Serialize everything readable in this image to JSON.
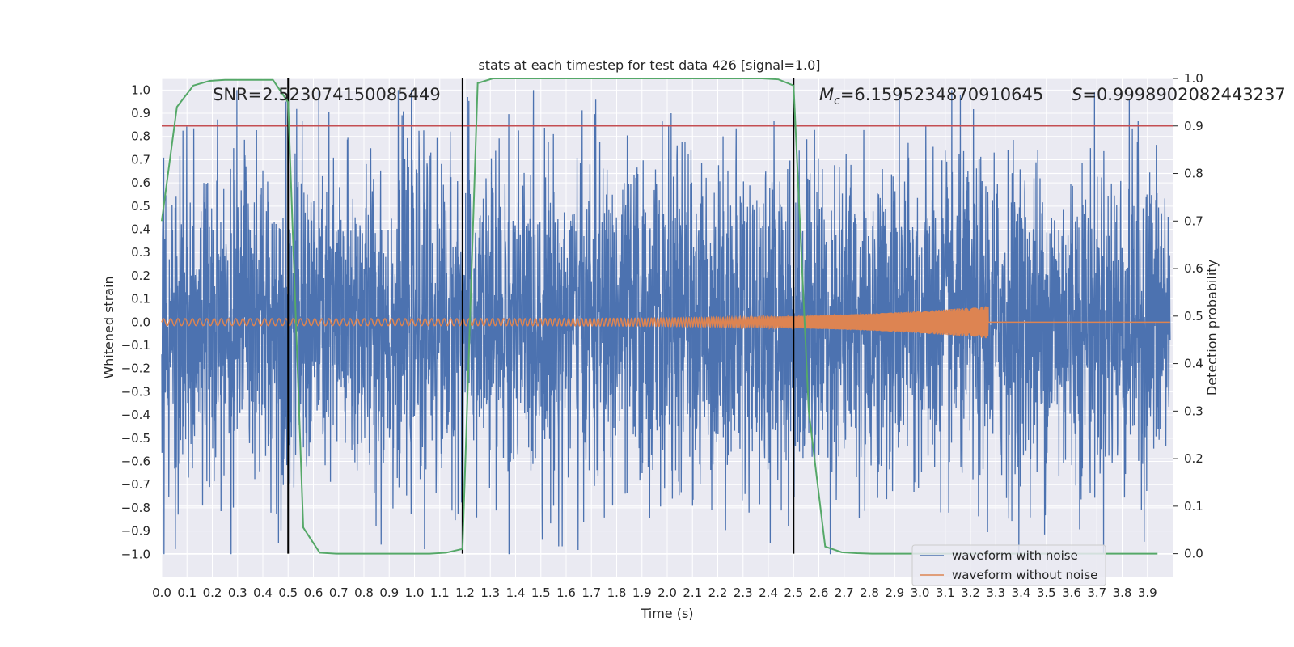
{
  "chart_data": {
    "type": "line",
    "title": "stats at each timestep for test data 426 [signal=1.0]",
    "xlabel": "Time (s)",
    "ylabel": "Whitened strain",
    "y2label": "Detection probability",
    "xlim": [
      0.0,
      4.0
    ],
    "ylim": [
      -1.1,
      1.05
    ],
    "y2lim": [
      -0.05,
      1.0
    ],
    "xticks": [
      "0.0",
      "0.1",
      "0.2",
      "0.3",
      "0.4",
      "0.5",
      "0.6",
      "0.7",
      "0.8",
      "0.9",
      "1.0",
      "1.1",
      "1.2",
      "1.3",
      "1.4",
      "1.5",
      "1.6",
      "1.7",
      "1.8",
      "1.9",
      "2.0",
      "2.1",
      "2.2",
      "2.3",
      "2.4",
      "2.5",
      "2.6",
      "2.7",
      "2.8",
      "2.9",
      "3.0",
      "3.1",
      "3.2",
      "3.3",
      "3.4",
      "3.5",
      "3.6",
      "3.7",
      "3.8",
      "3.9"
    ],
    "yticks": [
      "1.0",
      "0.9",
      "0.8",
      "0.7",
      "0.6",
      "0.5",
      "0.4",
      "0.3",
      "0.2",
      "0.1",
      "0.0",
      "−0.1",
      "−0.2",
      "−0.3",
      "−0.4",
      "−0.5",
      "−0.6",
      "−0.7",
      "−0.8",
      "−0.9",
      "−1.0"
    ],
    "y2ticks": [
      "1.0",
      "0.9",
      "0.8",
      "0.7",
      "0.6",
      "0.5",
      "0.4",
      "0.3",
      "0.2",
      "0.1",
      "0.0"
    ],
    "annotations": {
      "snr": "SNR=2.523074150085449",
      "mc_symbol": "M",
      "mc_sub": "c",
      "mc_value": "=6.1595234870910645",
      "s_symbol": "S",
      "s_value": "=0.9998902082443237"
    },
    "legend": {
      "position": "lower-right",
      "entries": [
        "waveform with noise",
        "waveform without noise"
      ]
    },
    "threshold": 0.9,
    "vlines": [
      0.5,
      1.19,
      2.5
    ],
    "noise": {
      "name": "waveform with noise",
      "color": "#4c72b0",
      "samples": 4000,
      "typical_amplitude": 0.35,
      "peak_amplitude": 1.0
    },
    "chirp": {
      "name": "waveform without noise",
      "color": "#dd8452",
      "start_amplitude": 0.015,
      "end_amplitude": 0.07,
      "start_freq_hz": 35,
      "end_freq_hz": 400,
      "end_time": 3.27
    },
    "probability": {
      "name": "detection probability",
      "color": "#55a868",
      "t": [
        0.0,
        0.06,
        0.125,
        0.19,
        0.25,
        0.31,
        0.375,
        0.44,
        0.5,
        0.56,
        0.625,
        0.69,
        0.75,
        0.81,
        0.875,
        0.94,
        1.0,
        1.06,
        1.125,
        1.19,
        1.25,
        1.31,
        1.375,
        1.44,
        1.5,
        1.56,
        1.625,
        1.69,
        1.75,
        1.81,
        1.875,
        1.94,
        2.0,
        2.06,
        2.125,
        2.19,
        2.25,
        2.31,
        2.375,
        2.44,
        2.5,
        2.56,
        2.625,
        2.69,
        2.75,
        2.81,
        2.875,
        2.94,
        3.0,
        3.06,
        3.125,
        3.19,
        3.25,
        3.31,
        3.375,
        3.44,
        3.5,
        3.56,
        3.625,
        3.69,
        3.75,
        3.81,
        3.875,
        3.94
      ],
      "p": [
        0.7,
        0.94,
        0.985,
        0.995,
        0.997,
        0.997,
        0.997,
        0.997,
        0.95,
        0.055,
        0.002,
        0.0,
        0.0,
        0.0,
        0.0,
        0.0,
        0.0,
        0.0,
        0.002,
        0.01,
        0.99,
        1.0,
        1.0,
        1.0,
        1.0,
        1.0,
        1.0,
        1.0,
        1.0,
        1.0,
        1.0,
        1.0,
        1.0,
        1.0,
        1.0,
        1.0,
        1.0,
        1.0,
        1.0,
        0.998,
        0.985,
        0.3,
        0.015,
        0.003,
        0.001,
        0.0,
        0.0,
        0.0,
        0.0,
        0.0,
        0.0,
        0.0,
        0.0,
        0.0,
        0.0,
        0.0,
        0.0,
        0.0,
        0.0,
        0.0,
        0.0,
        0.0,
        0.0,
        0.0
      ]
    }
  },
  "colors": {
    "background": "#eaeaf2",
    "grid": "#ffffff",
    "threshold": "#c44e52",
    "vline": "#000000"
  }
}
